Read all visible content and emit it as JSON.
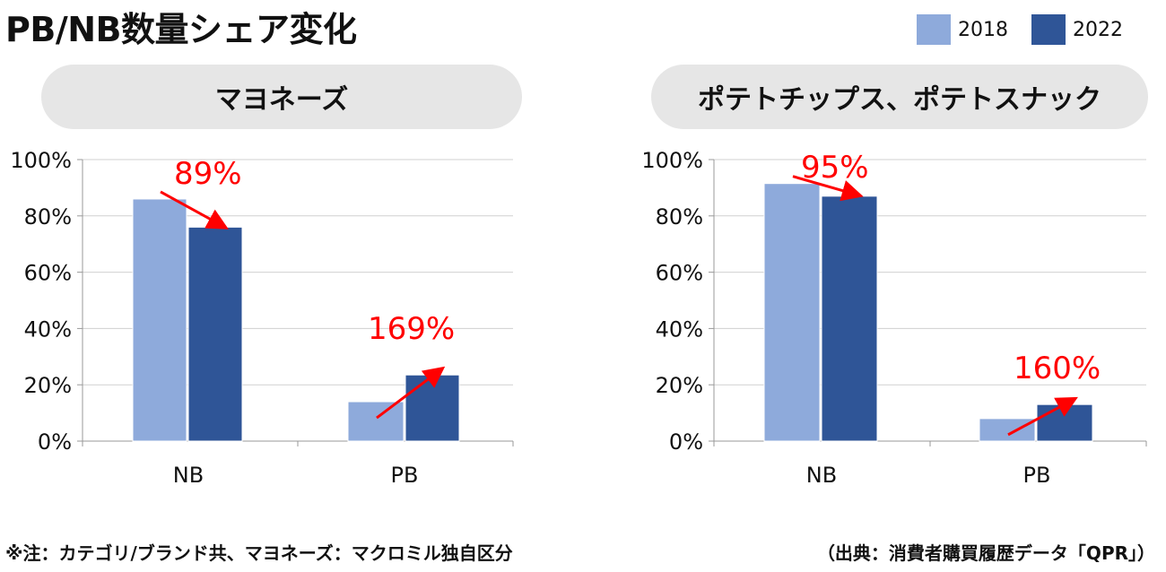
{
  "title": "PB/NB数量シェア変化",
  "legend": [
    {
      "label": "2018",
      "color": "#8eaadb"
    },
    {
      "label": "2022",
      "color": "#2f5597"
    }
  ],
  "arrow_color": "#ff0000",
  "footnote_left": "※注：カテゴリ/ブランド共、マヨネーズ：マクロミル独自区分",
  "footnote_right": "（出典：消費者購買履歴データ「QPR」）",
  "chart_data": [
    {
      "type": "bar",
      "title": "マヨネーズ",
      "categories": [
        "NB",
        "PB"
      ],
      "series": [
        {
          "name": "2018",
          "values": [
            86,
            14
          ]
        },
        {
          "name": "2022",
          "values": [
            76,
            23.5
          ]
        }
      ],
      "ylim": [
        0,
        100
      ],
      "yticks": [
        "0%",
        "20%",
        "40%",
        "60%",
        "80%",
        "100%"
      ],
      "annotations": [
        "89%",
        "169%"
      ]
    },
    {
      "type": "bar",
      "title": "ポテトチップス、ポテトスナック",
      "categories": [
        "NB",
        "PB"
      ],
      "series": [
        {
          "name": "2018",
          "values": [
            91.5,
            8
          ]
        },
        {
          "name": "2022",
          "values": [
            87,
            13
          ]
        }
      ],
      "ylim": [
        0,
        100
      ],
      "yticks": [
        "0%",
        "20%",
        "40%",
        "60%",
        "80%",
        "100%"
      ],
      "annotations": [
        "95%",
        "160%"
      ]
    }
  ]
}
